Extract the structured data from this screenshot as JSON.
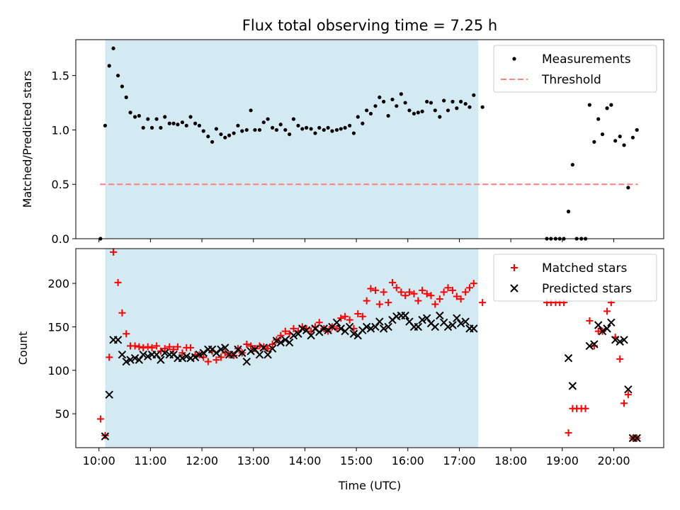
{
  "chart_data": [
    {
      "type": "scatter",
      "title": "Flux total observing time = 7.25 h",
      "ylabel": "Matched/Predicted stars",
      "xlabel": "",
      "ylim": [
        0,
        1.83
      ],
      "yticks": [
        "0.0",
        "0.5",
        "1.0",
        "1.5"
      ],
      "xlim": [
        9.55,
        20.97
      ],
      "shaded_span": [
        10.12,
        17.37
      ],
      "shade_color": "#add8e6",
      "legend_position": "top-right",
      "threshold": {
        "name": "Threshold",
        "value": 0.5,
        "x_range": [
          10.02,
          20.47
        ],
        "color": "#ff7f7f"
      },
      "series": [
        {
          "name": "Measurements",
          "color": "#000000",
          "marker": "dot",
          "x": [
            10.03,
            10.12,
            10.2,
            10.28,
            10.37,
            10.45,
            10.53,
            10.61,
            10.7,
            10.78,
            10.86,
            10.95,
            11.03,
            11.12,
            11.2,
            11.28,
            11.37,
            11.45,
            11.53,
            11.62,
            11.7,
            11.78,
            11.87,
            11.95,
            12.03,
            12.12,
            12.2,
            12.28,
            12.37,
            12.45,
            12.53,
            12.62,
            12.7,
            12.78,
            12.87,
            12.95,
            13.03,
            13.12,
            13.2,
            13.28,
            13.37,
            13.45,
            13.53,
            13.62,
            13.7,
            13.78,
            13.87,
            13.95,
            14.03,
            14.12,
            14.2,
            14.28,
            14.37,
            14.45,
            14.53,
            14.62,
            14.7,
            14.78,
            14.87,
            14.95,
            15.03,
            15.12,
            15.2,
            15.28,
            15.37,
            15.45,
            15.53,
            15.62,
            15.7,
            15.78,
            15.87,
            15.95,
            16.03,
            16.12,
            16.2,
            16.28,
            16.37,
            16.45,
            16.53,
            16.62,
            16.7,
            16.78,
            16.87,
            16.95,
            17.03,
            17.12,
            17.2,
            17.28,
            17.45,
            18.7,
            18.78,
            18.87,
            18.95,
            19.03,
            19.12,
            19.2,
            19.28,
            19.37,
            19.45,
            19.53,
            19.62,
            19.7,
            19.78,
            19.87,
            19.95,
            20.03,
            20.12,
            20.2,
            20.28,
            20.37,
            20.45
          ],
          "y": [
            0.0,
            1.04,
            1.59,
            1.75,
            1.5,
            1.4,
            1.3,
            1.16,
            1.12,
            1.13,
            1.02,
            1.1,
            1.02,
            1.1,
            1.02,
            1.12,
            1.06,
            1.06,
            1.05,
            1.07,
            1.04,
            1.12,
            1.06,
            1.04,
            0.99,
            0.94,
            0.89,
            1.01,
            0.96,
            0.93,
            0.95,
            0.97,
            1.04,
            0.99,
            1.0,
            1.18,
            1.0,
            1.0,
            1.07,
            1.1,
            1.02,
            1.0,
            1.05,
            1.0,
            0.96,
            1.1,
            1.04,
            1.01,
            1.02,
            1.01,
            0.97,
            1.02,
            1.0,
            1.02,
            0.99,
            1.0,
            1.01,
            1.02,
            1.04,
            0.97,
            1.12,
            1.06,
            1.18,
            1.15,
            1.22,
            1.3,
            1.26,
            1.13,
            1.28,
            1.22,
            1.33,
            1.25,
            1.18,
            1.15,
            1.16,
            1.17,
            1.26,
            1.25,
            1.18,
            1.12,
            1.27,
            1.18,
            1.26,
            1.2,
            1.26,
            1.24,
            1.21,
            1.32,
            1.21,
            0.0,
            0.0,
            0.0,
            0.0,
            0.0,
            0.25,
            0.68,
            0.0,
            0.0,
            0.0,
            1.23,
            0.89,
            1.1,
            0.96,
            1.2,
            1.23,
            0.9,
            0.94,
            0.86,
            0.47,
            0.93,
            1.0
          ]
        }
      ]
    },
    {
      "type": "scatter",
      "title": "",
      "ylabel": "Count",
      "xlabel": "Time (UTC)",
      "ylim": [
        11,
        240
      ],
      "yticks": [
        "50",
        "100",
        "150",
        "200"
      ],
      "xlim": [
        9.55,
        20.97
      ],
      "xticks": [
        "10:00",
        "11:00",
        "12:00",
        "13:00",
        "14:00",
        "15:00",
        "16:00",
        "17:00",
        "18:00",
        "19:00",
        "20:00"
      ],
      "shaded_span": [
        10.12,
        17.37
      ],
      "shade_color": "#add8e6",
      "legend_position": "top-right",
      "series": [
        {
          "name": "Matched stars",
          "color": "#ff0000",
          "marker": "plus",
          "x": [
            10.03,
            10.12,
            10.2,
            10.28,
            10.37,
            10.45,
            10.53,
            10.61,
            10.7,
            10.78,
            10.86,
            10.95,
            11.03,
            11.12,
            11.2,
            11.28,
            11.37,
            11.45,
            11.53,
            11.62,
            11.7,
            11.78,
            11.87,
            11.95,
            12.03,
            12.12,
            12.2,
            12.28,
            12.37,
            12.45,
            12.53,
            12.62,
            12.7,
            12.78,
            12.87,
            12.95,
            13.03,
            13.12,
            13.2,
            13.28,
            13.37,
            13.45,
            13.53,
            13.62,
            13.7,
            13.78,
            13.87,
            13.95,
            14.03,
            14.12,
            14.2,
            14.28,
            14.37,
            14.45,
            14.53,
            14.62,
            14.7,
            14.78,
            14.87,
            14.95,
            15.03,
            15.12,
            15.2,
            15.28,
            15.37,
            15.45,
            15.53,
            15.62,
            15.7,
            15.78,
            15.87,
            15.95,
            16.03,
            16.12,
            16.2,
            16.28,
            16.37,
            16.45,
            16.53,
            16.62,
            16.7,
            16.78,
            16.87,
            16.95,
            17.03,
            17.12,
            17.2,
            17.28,
            17.45,
            18.7,
            18.78,
            18.87,
            18.95,
            19.03,
            19.12,
            19.2,
            19.28,
            19.37,
            19.45,
            19.53,
            19.62,
            19.7,
            19.78,
            19.87,
            19.95,
            20.03,
            20.12,
            20.2,
            20.28,
            20.37,
            20.45
          ],
          "y": [
            44,
            25,
            115,
            236,
            201,
            166,
            142,
            128,
            128,
            127,
            126,
            127,
            126,
            128,
            122,
            125,
            127,
            124,
            127,
            120,
            126,
            126,
            118,
            118,
            115,
            110,
            122,
            112,
            115,
            120,
            118,
            117,
            125,
            120,
            130,
            128,
            125,
            128,
            127,
            125,
            130,
            135,
            140,
            145,
            142,
            148,
            145,
            150,
            148,
            145,
            150,
            155,
            148,
            145,
            150,
            148,
            160,
            162,
            158,
            148,
            165,
            162,
            180,
            194,
            192,
            176,
            190,
            178,
            201,
            195,
            190,
            186,
            190,
            188,
            180,
            192,
            188,
            186,
            176,
            182,
            190,
            195,
            192,
            185,
            182,
            190,
            195,
            200,
            178,
            178,
            178,
            178,
            178,
            178,
            28,
            56,
            56,
            56,
            56,
            157,
            128,
            145,
            145,
            168,
            178,
            138,
            113,
            62,
            72,
            22,
            22
          ]
        },
        {
          "name": "Predicted stars",
          "color": "#000000",
          "marker": "x",
          "x": [
            10.12,
            10.2,
            10.28,
            10.37,
            10.45,
            10.53,
            10.61,
            10.7,
            10.78,
            10.86,
            10.95,
            11.03,
            11.12,
            11.2,
            11.28,
            11.37,
            11.45,
            11.53,
            11.62,
            11.7,
            11.78,
            11.87,
            11.95,
            12.03,
            12.12,
            12.2,
            12.28,
            12.37,
            12.45,
            12.53,
            12.62,
            12.7,
            12.78,
            12.87,
            12.95,
            13.03,
            13.12,
            13.2,
            13.28,
            13.37,
            13.45,
            13.53,
            13.62,
            13.7,
            13.78,
            13.87,
            13.95,
            14.03,
            14.12,
            14.2,
            14.28,
            14.37,
            14.45,
            14.53,
            14.62,
            14.7,
            14.78,
            14.87,
            14.95,
            15.03,
            15.12,
            15.2,
            15.28,
            15.37,
            15.45,
            15.53,
            15.62,
            15.7,
            15.78,
            15.87,
            15.95,
            16.03,
            16.12,
            16.2,
            16.28,
            16.37,
            16.45,
            16.53,
            16.62,
            16.7,
            16.78,
            16.87,
            16.95,
            17.03,
            17.12,
            17.2,
            17.28,
            19.12,
            19.2,
            19.53,
            19.62,
            19.7,
            19.78,
            19.87,
            19.95,
            20.03,
            20.12,
            20.2,
            20.28,
            20.37,
            20.45
          ],
          "y": [
            24,
            72,
            135,
            135,
            118,
            110,
            112,
            114,
            112,
            118,
            116,
            118,
            118,
            112,
            120,
            118,
            118,
            114,
            114,
            116,
            114,
            115,
            118,
            120,
            124,
            124,
            120,
            124,
            126,
            118,
            118,
            124,
            120,
            110,
            122,
            124,
            118,
            126,
            118,
            125,
            134,
            132,
            135,
            132,
            140,
            142,
            148,
            146,
            140,
            148,
            144,
            148,
            146,
            150,
            155,
            148,
            145,
            150,
            142,
            140,
            146,
            150,
            148,
            150,
            156,
            148,
            150,
            158,
            162,
            163,
            163,
            156,
            150,
            150,
            158,
            160,
            154,
            150,
            163,
            155,
            150,
            152,
            160,
            154,
            156,
            148,
            148,
            114,
            82,
            128,
            130,
            152,
            145,
            148,
            155,
            135,
            133,
            135,
            78,
            22,
            22
          ]
        }
      ]
    }
  ]
}
